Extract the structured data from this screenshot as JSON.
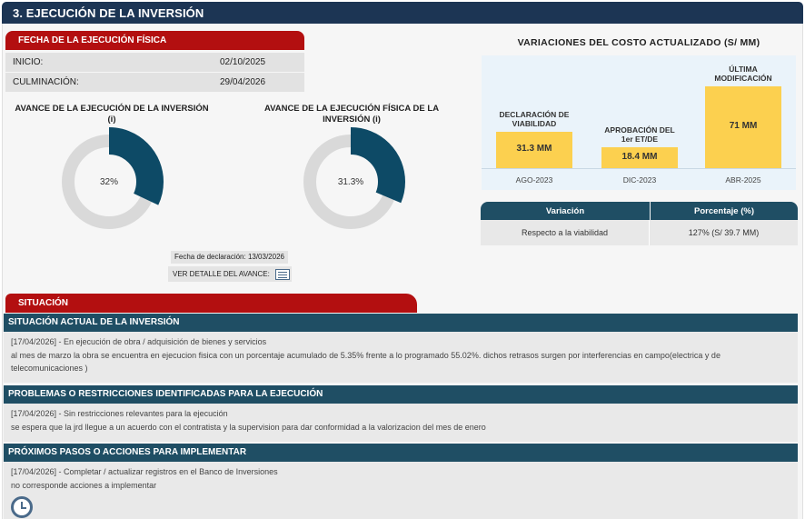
{
  "section_header": "3. EJECUCIÓN DE LA INVERSIÓN",
  "fecha": {
    "tab_label": "FECHA DE LA EJECUCIÓN FÍSICA",
    "rows": [
      {
        "label": "INICIO:",
        "value": "02/10/2025"
      },
      {
        "label": "CULMINACIÓN:",
        "value": "29/04/2026"
      }
    ]
  },
  "avance_inversion": {
    "title": "AVANCE DE LA EJECUCIÓN DE LA INVERSIÓN",
    "info": "(i)",
    "value_label": "32%",
    "value": 32
  },
  "avance_fisica": {
    "title": "AVANCE DE LA EJECUCIÓN FÍSICA DE LA INVERSIÓN",
    "info": "(i)",
    "value_label": "31.3%",
    "value": 31.3
  },
  "declaracion": "Fecha de declaración: 13/03/2026",
  "ver_detalle": "VER DETALLE DEL AVANCE:",
  "chart_data": {
    "type": "bar",
    "title": "VARIACIONES DEL COSTO ACTUALIZADO (S/ MM)",
    "categories": [
      "AGO-2023",
      "DIC-2023",
      "ABR-2025"
    ],
    "captions": [
      "DECLARACIÓN DE VIABILIDAD",
      "APROBACIÓN DEL 1er ET/DE",
      "ÚLTIMA MODIFICACIÓN"
    ],
    "value_labels": [
      "31.3 MM",
      "18.4 MM",
      "71 MM"
    ],
    "values": [
      31.3,
      18.4,
      71
    ],
    "bar_color": "#fcd04f"
  },
  "variacion_table": {
    "headers": [
      "Variación",
      "Porcentaje (%)"
    ],
    "rows": [
      [
        "Respecto a la viabilidad",
        "127% (S/ 39.7 MM)"
      ]
    ]
  },
  "situacion": {
    "tab_label": "SITUACIÓN",
    "sections": [
      {
        "title": "SITUACIÓN ACTUAL DE LA INVERSIÓN",
        "line1": "[17/04/2026] - En ejecución de obra / adquisición de bienes y servicios",
        "line2": "al mes de marzo la obra se encuentra en ejecucion fisica con un porcentaje acumulado de 5.35% frente a lo programado 55.02%. dichos retrasos surgen por interferencias en campo(electrica y de telecomunicaciones )"
      },
      {
        "title": "PROBLEMAS O RESTRICCIONES IDENTIFICADAS PARA LA EJECUCIÓN",
        "line1": "[17/04/2026] - Sin restricciones relevantes para la ejecución",
        "line2": "se espera que la jrd llegue a un acuerdo con el contratista y la supervision para dar conformidad a la valorizacion del mes de enero"
      },
      {
        "title": "PRÓXIMOS PASOS O ACCIONES PARA IMPLEMENTAR",
        "line1": "[17/04/2026] - Completar / actualizar registros en el Banco de Inversiones",
        "line2": "no corresponde acciones a implementar"
      }
    ]
  },
  "colors": {
    "navy": "#1c3554",
    "teal": "#1f4e64",
    "red": "#b30f10",
    "donut": "#0d4a66"
  }
}
